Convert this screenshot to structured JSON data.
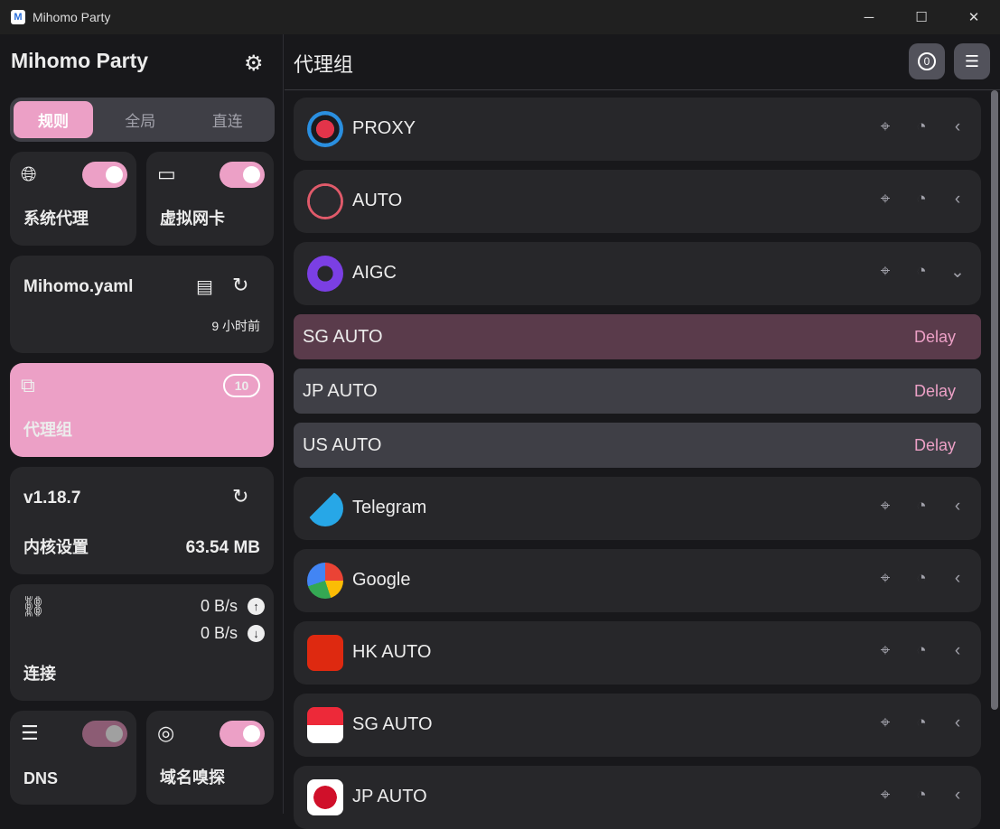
{
  "window": {
    "title": "Mihomo Party",
    "controls": [
      "─",
      "☐",
      "✕"
    ]
  },
  "sidebar": {
    "brand": "Mihomo Party",
    "modes": [
      {
        "label": "规则",
        "active": true
      },
      {
        "label": "全局"
      },
      {
        "label": "直连"
      }
    ],
    "sysproxy": {
      "label": "系统代理",
      "enabled": true
    },
    "tun": {
      "label": "虚拟网卡",
      "enabled": true
    },
    "profile": {
      "name": "Mihomo.yaml",
      "updated": "9 小时前"
    },
    "proxies": {
      "label": "代理组",
      "count": "10"
    },
    "core": {
      "version": "v1.18.7",
      "label": "内核设置",
      "memory": "63.54 MB"
    },
    "connections": {
      "label": "连接",
      "upload": "0 B/s",
      "download": "0 B/s"
    },
    "dns": {
      "label": "DNS",
      "enabled": true,
      "disabled": true
    },
    "sniff": {
      "label": "域名嗅探",
      "enabled": true
    }
  },
  "main": {
    "title": "代理组",
    "accent": "#eca0c6",
    "groups": [
      {
        "name": "PROXY",
        "icon": "proxy-target-icon",
        "expanded": false
      },
      {
        "name": "AUTO",
        "icon": "auto-bolt-icon",
        "expanded": false
      },
      {
        "name": "AIGC",
        "icon": "openai-icon",
        "expanded": true,
        "items": [
          {
            "name": "SG AUTO",
            "delay": "Delay",
            "selected": true
          },
          {
            "name": "JP AUTO",
            "delay": "Delay"
          },
          {
            "name": "US AUTO",
            "delay": "Delay"
          }
        ]
      },
      {
        "name": "Telegram",
        "icon": "telegram-icon",
        "expanded": false
      },
      {
        "name": "Google",
        "icon": "google-icon",
        "expanded": false
      },
      {
        "name": "HK AUTO",
        "icon": "hk-flag-icon",
        "expanded": false
      },
      {
        "name": "SG AUTO",
        "icon": "sg-flag-icon",
        "expanded": false
      },
      {
        "name": "JP AUTO",
        "icon": "jp-flag-icon",
        "expanded": false
      }
    ]
  }
}
